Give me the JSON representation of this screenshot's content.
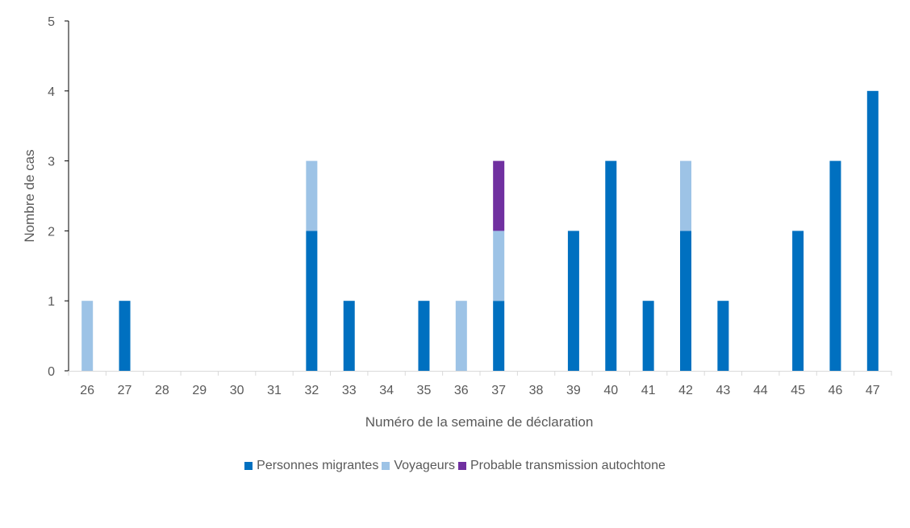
{
  "chart_data": {
    "type": "bar",
    "stacked": true,
    "xlabel": "Numéro de la semaine de déclaration",
    "ylabel": "Nombre de cas",
    "ylim": [
      0,
      5
    ],
    "yticks": [
      0,
      1,
      2,
      3,
      4,
      5
    ],
    "grid": false,
    "legend_position": "bottom",
    "categories": [
      "26",
      "27",
      "28",
      "29",
      "30",
      "31",
      "32",
      "33",
      "34",
      "35",
      "36",
      "37",
      "38",
      "39",
      "40",
      "41",
      "42",
      "43",
      "44",
      "45",
      "46",
      "47"
    ],
    "series": [
      {
        "name": "Personnes migrantes",
        "color": "#0070C0",
        "values": [
          0,
          1,
          0,
          0,
          0,
          0,
          2,
          1,
          0,
          1,
          0,
          1,
          0,
          2,
          3,
          1,
          2,
          1,
          0,
          2,
          3,
          4
        ]
      },
      {
        "name": "Voyageurs",
        "color": "#9DC3E6",
        "values": [
          1,
          0,
          0,
          0,
          0,
          0,
          1,
          0,
          0,
          0,
          1,
          1,
          0,
          0,
          0,
          0,
          1,
          0,
          0,
          0,
          0,
          0
        ]
      },
      {
        "name": "Probable transmission autochtone",
        "color": "#7030A0",
        "values": [
          0,
          0,
          0,
          0,
          0,
          0,
          0,
          0,
          0,
          0,
          0,
          1,
          0,
          0,
          0,
          0,
          0,
          0,
          0,
          0,
          0,
          0
        ]
      }
    ]
  }
}
